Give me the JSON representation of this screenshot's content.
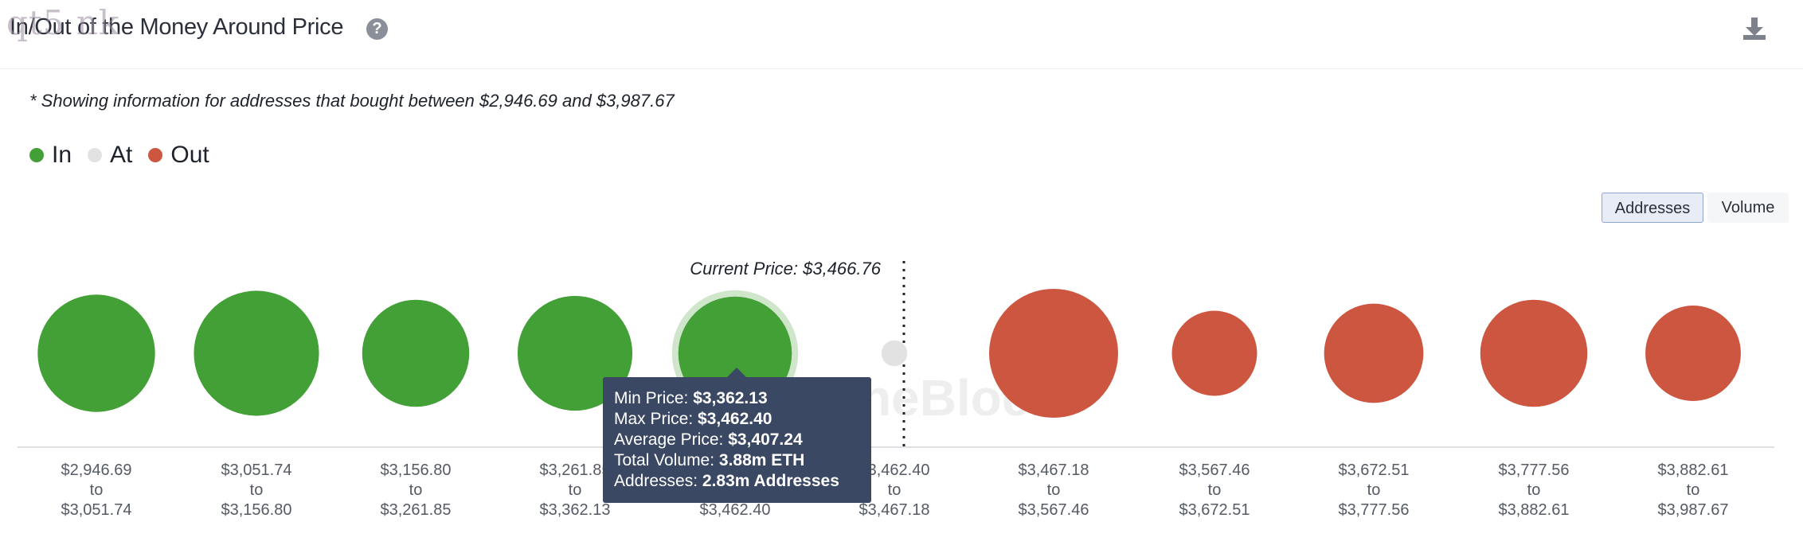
{
  "header": {
    "title": "In/Out of the Money Around Price",
    "watermark_text": "qt5 nk"
  },
  "note": "* Showing information for addresses that bought between $2,946.69 and $3,987.67",
  "legend": [
    {
      "label": "In",
      "color": "#43a037"
    },
    {
      "label": "At",
      "color": "#e2e2e2"
    },
    {
      "label": "Out",
      "color": "#cc5640"
    }
  ],
  "toggles": {
    "addresses": "Addresses",
    "volume": "Volume"
  },
  "chart_data": {
    "type": "bubble",
    "current_price_label": "Current Price: $3,466.76",
    "watermark": "TheBlock",
    "range_word": "to",
    "bins": [
      {
        "from": "$2,946.69",
        "to": "$3,051.74",
        "status": "In",
        "relative_size": 0.91
      },
      {
        "from": "$3,051.74",
        "to": "$3,156.80",
        "status": "In",
        "relative_size": 0.97
      },
      {
        "from": "$3,156.80",
        "to": "$3,261.85",
        "status": "In",
        "relative_size": 0.83
      },
      {
        "from": "$3,261.85",
        "to": "$3,362.13",
        "status": "In",
        "relative_size": 0.89
      },
      {
        "from": "$3,362.13",
        "to": "$3,462.40",
        "status": "In",
        "relative_size": 0.88
      },
      {
        "from": "$3,462.40",
        "to": "$3,467.18",
        "status": "At",
        "relative_size": 0.2
      },
      {
        "from": "$3,467.18",
        "to": "$3,567.46",
        "status": "Out",
        "relative_size": 1.0
      },
      {
        "from": "$3,567.46",
        "to": "$3,672.51",
        "status": "Out",
        "relative_size": 0.66
      },
      {
        "from": "$3,672.51",
        "to": "$3,777.56",
        "status": "Out",
        "relative_size": 0.77
      },
      {
        "from": "$3,777.56",
        "to": "$3,882.61",
        "status": "Out",
        "relative_size": 0.83
      },
      {
        "from": "$3,882.61",
        "to": "$3,987.67",
        "status": "Out",
        "relative_size": 0.74
      }
    ],
    "highlighted_bin": 4,
    "tooltip": {
      "min_label": "Min Price:",
      "min_value": "$3,362.13",
      "max_label": "Max Price:",
      "max_value": "$3,462.40",
      "avg_label": "Average Price:",
      "avg_value": "$3,407.24",
      "vol_label": "Total Volume:",
      "vol_value": "3.88m ETH",
      "addr_label": "Addresses:",
      "addr_value": "2.83m Addresses"
    }
  }
}
